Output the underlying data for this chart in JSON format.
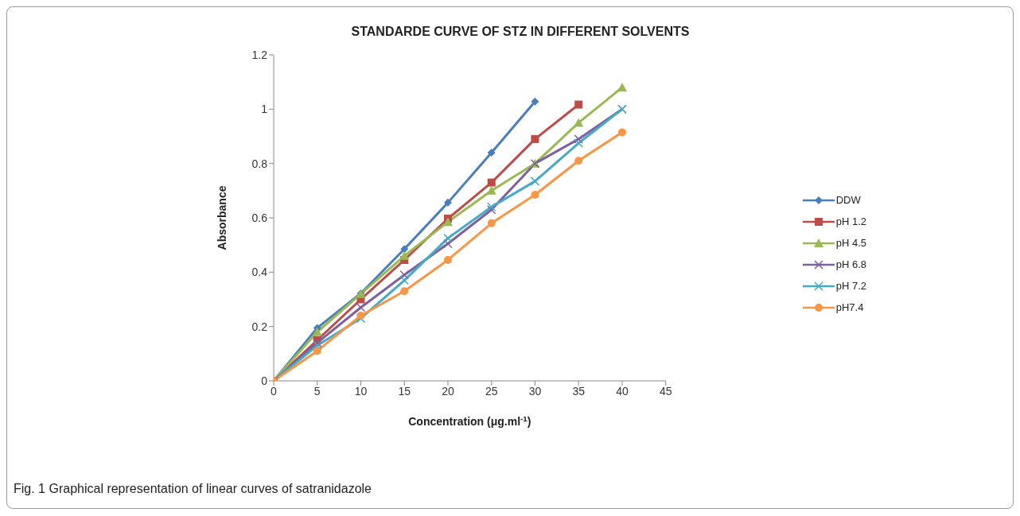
{
  "chart_data": {
    "type": "line",
    "title": "STANDARDE CURVE OF STZ IN DIFFERENT SOLVENTS",
    "xlabel": "Concentration (μg.ml$^{-1}$)",
    "ylabel": "Absorbance",
    "annotations": [
      "Fig. 1 Graphical representation of linear curves of satranidazole"
    ],
    "x": [
      0,
      5,
      10,
      15,
      20,
      25,
      30,
      35,
      40
    ],
    "series": [
      {
        "name": "DDW",
        "color": "#4a7ebb",
        "marker": "diamond",
        "values": [
          0,
          0.195,
          0.322,
          0.485,
          0.656,
          0.84,
          1.028,
          null,
          null
        ]
      },
      {
        "name": "pH 1.2",
        "color": "#be4b48",
        "marker": "square",
        "values": [
          0,
          0.15,
          0.3,
          0.445,
          0.597,
          0.73,
          0.89,
          1.017,
          null
        ]
      },
      {
        "name": "pH 4.5",
        "color": "#98b954",
        "marker": "triangle",
        "values": [
          0,
          0.18,
          0.32,
          0.46,
          0.585,
          0.7,
          0.8,
          0.95,
          1.08
        ]
      },
      {
        "name": "pH 6.8",
        "color": "#7d60a0",
        "marker": "cross",
        "values": [
          0,
          0.14,
          0.27,
          0.39,
          0.505,
          0.63,
          0.8,
          0.89,
          1.0
        ]
      },
      {
        "name": "pH 7.2",
        "color": "#46aac5",
        "marker": "cross",
        "values": [
          0,
          0.13,
          0.23,
          0.37,
          0.525,
          0.64,
          0.735,
          0.875,
          1.0
        ]
      },
      {
        "name": "pH7.4",
        "color": "#f79646",
        "marker": "circle",
        "values": [
          0,
          0.11,
          0.24,
          0.33,
          0.445,
          0.58,
          0.685,
          0.81,
          0.915
        ]
      }
    ],
    "xlim": [
      0,
      45
    ],
    "xticks": [
      0,
      5,
      10,
      15,
      20,
      25,
      30,
      35,
      40,
      45
    ],
    "ylim": [
      0,
      1.2
    ],
    "yticks": [
      0,
      0.2,
      0.4,
      0.6,
      0.8,
      1,
      1.2
    ],
    "grid": false,
    "legend": "right",
    "line_style": "solid"
  }
}
